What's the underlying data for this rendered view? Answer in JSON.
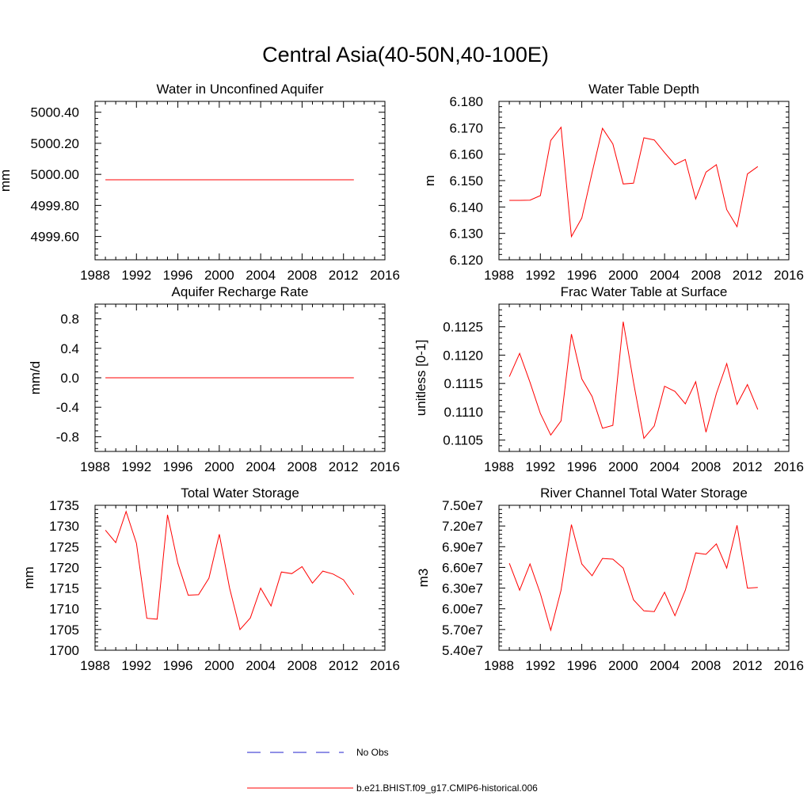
{
  "title": "Central Asia(40-50N,40-100E)",
  "colors": {
    "model": "#ff0000",
    "obs": "#2222cc",
    "axis": "#000000"
  },
  "legend": [
    {
      "label": "No Obs",
      "style": "dashed",
      "color": "#2222cc"
    },
    {
      "label": "b.e21.BHIST.f09_g17.CMIP6-historical.006",
      "style": "solid",
      "color": "#ff0000"
    }
  ],
  "chart_data": [
    {
      "type": "line",
      "title": "Water in Unconfined Aquifer",
      "ylabel": "mm",
      "xlim": [
        1988,
        2016
      ],
      "xticks": [
        "1988",
        "1992",
        "1996",
        "2000",
        "2004",
        "2008",
        "2012",
        "2016"
      ],
      "ylim": [
        4999.45,
        5000.47
      ],
      "yticks": [
        "4999.60",
        "4999.80",
        "5000.00",
        "5000.20",
        "5000.40"
      ],
      "ytick_values": [
        4999.6,
        4999.8,
        5000.0,
        5000.2,
        5000.4
      ],
      "series": [
        {
          "x": [
            1989,
            1990,
            1991,
            1992,
            1993,
            1994,
            1995,
            1996,
            1997,
            1998,
            1999,
            2000,
            2001,
            2002,
            2003,
            2004,
            2005,
            2006,
            2007,
            2008,
            2009,
            2010,
            2011,
            2012,
            2013
          ],
          "y": [
            4999.965,
            4999.965,
            4999.965,
            4999.965,
            4999.965,
            4999.965,
            4999.965,
            4999.965,
            4999.965,
            4999.965,
            4999.965,
            4999.965,
            4999.965,
            4999.965,
            4999.965,
            4999.965,
            4999.965,
            4999.965,
            4999.965,
            4999.965,
            4999.965,
            4999.965,
            4999.965,
            4999.965,
            4999.965
          ]
        }
      ]
    },
    {
      "type": "line",
      "title": "Water Table Depth",
      "ylabel": "m",
      "xlim": [
        1988,
        2016
      ],
      "xticks": [
        "1988",
        "1992",
        "1996",
        "2000",
        "2004",
        "2008",
        "2012",
        "2016"
      ],
      "ylim": [
        6.12,
        6.18
      ],
      "yticks": [
        "6.120",
        "6.130",
        "6.140",
        "6.150",
        "6.160",
        "6.170",
        "6.180"
      ],
      "ytick_values": [
        6.12,
        6.13,
        6.14,
        6.15,
        6.16,
        6.17,
        6.18
      ],
      "series": [
        {
          "x": [
            1989,
            1990,
            1991,
            1992,
            1993,
            1994,
            1995,
            1996,
            1997,
            1998,
            1999,
            2000,
            2001,
            2002,
            2003,
            2004,
            2005,
            2006,
            2007,
            2008,
            2009,
            2010,
            2011,
            2012,
            2013
          ],
          "y": [
            6.1425,
            6.1425,
            6.1426,
            6.1443,
            6.1652,
            6.1702,
            6.1288,
            6.1358,
            6.153,
            6.1698,
            6.1639,
            6.1487,
            6.149,
            6.1662,
            6.1654,
            6.1606,
            6.156,
            6.158,
            6.143,
            6.1532,
            6.156,
            6.139,
            6.1325,
            6.1525,
            6.1553
          ]
        }
      ]
    },
    {
      "type": "line",
      "title": "Aquifer Recharge Rate",
      "ylabel": "mm/d",
      "xlim": [
        1988,
        2016
      ],
      "xticks": [
        "1988",
        "1992",
        "1996",
        "2000",
        "2004",
        "2008",
        "2012",
        "2016"
      ],
      "ylim": [
        -1.0,
        1.0
      ],
      "yticks": [
        "-0.8",
        "-0.4",
        "0.0",
        "0.4",
        "0.8"
      ],
      "ytick_values": [
        -0.8,
        -0.4,
        0.0,
        0.4,
        0.8
      ],
      "series": [
        {
          "x": [
            1989,
            1990,
            1991,
            1992,
            1993,
            1994,
            1995,
            1996,
            1997,
            1998,
            1999,
            2000,
            2001,
            2002,
            2003,
            2004,
            2005,
            2006,
            2007,
            2008,
            2009,
            2010,
            2011,
            2012,
            2013
          ],
          "y": [
            0,
            0,
            0,
            0,
            0,
            0,
            0,
            0,
            0,
            0,
            0,
            0,
            0,
            0,
            0,
            0,
            0,
            0,
            0,
            0,
            0,
            0,
            0,
            0,
            0
          ]
        }
      ]
    },
    {
      "type": "line",
      "title": "Frac Water Table at Surface",
      "ylabel": "unitless [0-1]",
      "xlim": [
        1988,
        2016
      ],
      "xticks": [
        "1988",
        "1992",
        "1996",
        "2000",
        "2004",
        "2008",
        "2012",
        "2016"
      ],
      "ylim": [
        0.1103,
        0.1129
      ],
      "yticks": [
        "0.1105",
        "0.1110",
        "0.1115",
        "0.1120",
        "0.1125"
      ],
      "ytick_values": [
        0.1105,
        0.111,
        0.1115,
        0.112,
        0.1125
      ],
      "series": [
        {
          "x": [
            1989,
            1990,
            1991,
            1992,
            1993,
            1994,
            1995,
            1996,
            1997,
            1998,
            1999,
            2000,
            2001,
            2002,
            2003,
            2004,
            2005,
            2006,
            2007,
            2008,
            2009,
            2010,
            2011,
            2012,
            2013
          ],
          "y": [
            0.11162,
            0.11203,
            0.11152,
            0.11097,
            0.11059,
            0.11084,
            0.11237,
            0.11158,
            0.11127,
            0.11071,
            0.11076,
            0.11259,
            0.11152,
            0.11053,
            0.11075,
            0.11145,
            0.11136,
            0.11114,
            0.11153,
            0.11064,
            0.11132,
            0.11185,
            0.11113,
            0.11148,
            0.11104
          ]
        }
      ]
    },
    {
      "type": "line",
      "title": "Total Water Storage",
      "ylabel": "mm",
      "xlim": [
        1988,
        2016
      ],
      "xticks": [
        "1988",
        "1992",
        "1996",
        "2000",
        "2004",
        "2008",
        "2012",
        "2016"
      ],
      "ylim": [
        1700,
        1735
      ],
      "yticks": [
        "1700",
        "1705",
        "1710",
        "1715",
        "1720",
        "1725",
        "1730",
        "1735"
      ],
      "ytick_values": [
        1700,
        1705,
        1710,
        1715,
        1720,
        1725,
        1730,
        1735
      ],
      "series": [
        {
          "x": [
            1989,
            1990,
            1991,
            1992,
            1993,
            1994,
            1995,
            1996,
            1997,
            1998,
            1999,
            2000,
            2001,
            2002,
            2003,
            2004,
            2005,
            2006,
            2007,
            2008,
            2009,
            2010,
            2011,
            2012,
            2013
          ],
          "y": [
            1729.0,
            1726.0,
            1733.5,
            1725.8,
            1707.7,
            1707.5,
            1732.7,
            1721.0,
            1713.3,
            1713.4,
            1717.4,
            1728.0,
            1715.0,
            1705.0,
            1707.8,
            1715.0,
            1710.7,
            1718.9,
            1718.5,
            1720.2,
            1716.2,
            1719.1,
            1718.4,
            1717.0,
            1713.4
          ]
        }
      ]
    },
    {
      "type": "line",
      "title": "River Channel Total Water Storage",
      "ylabel": "m3",
      "xlim": [
        1988,
        2016
      ],
      "xticks": [
        "1988",
        "1992",
        "1996",
        "2000",
        "2004",
        "2008",
        "2012",
        "2016"
      ],
      "ylim": [
        54000000,
        75000000
      ],
      "yticks": [
        "5.40e7",
        "5.70e7",
        "6.00e7",
        "6.30e7",
        "6.60e7",
        "6.90e7",
        "7.20e7",
        "7.50e7"
      ],
      "ytick_values": [
        54000000,
        57000000,
        60000000,
        63000000,
        66000000,
        69000000,
        72000000,
        75000000
      ],
      "series": [
        {
          "x": [
            1989,
            1990,
            1991,
            1992,
            1993,
            1994,
            1995,
            1996,
            1997,
            1998,
            1999,
            2000,
            2001,
            2002,
            2003,
            2004,
            2005,
            2006,
            2007,
            2008,
            2009,
            2010,
            2011,
            2012,
            2013
          ],
          "y": [
            66600000,
            62700000,
            66500000,
            62200000,
            56900000,
            62700000,
            72200000,
            66500000,
            64800000,
            67300000,
            67200000,
            65900000,
            61300000,
            59700000,
            59600000,
            62400000,
            59000000,
            62700000,
            68100000,
            67900000,
            69400000,
            65900000,
            72100000,
            63000000,
            63100000
          ]
        }
      ]
    }
  ]
}
